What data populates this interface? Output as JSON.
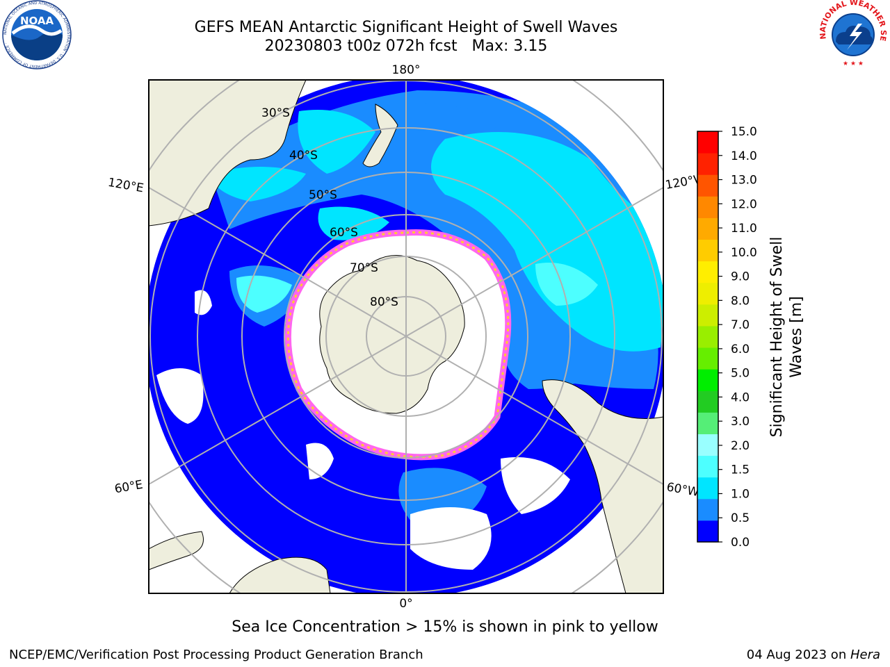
{
  "title": {
    "line1": "GEFS MEAN Antarctic Significant Height of Swell Waves",
    "line2": "20230803 t00z 072h fcst   Max: 3.15"
  },
  "map": {
    "projection": "south-polar-stereographic",
    "longitude_labels": [
      "180°",
      "120°E",
      "120°W",
      "60°E",
      "60°W",
      "0°"
    ],
    "latitude_labels": [
      "30°S",
      "40°S",
      "50°S",
      "60°S",
      "70°S",
      "80°S"
    ],
    "colors": {
      "land": "#eeeedd",
      "ice_free_ocean_dark": "#0000ff",
      "ocean_mid": "#1a8cff",
      "ocean_light": "#00e5ff",
      "sea_ice_open": "#ffffff",
      "ice_edge_pink": "#ff66ee",
      "ice_edge_yellow": "#ffcc33",
      "grid": "#b0b0b0"
    }
  },
  "colorbar": {
    "label": "Significant Height of Swell Waves [m]",
    "label_line1": "Significant Height of Swell",
    "label_line2": "Waves [m]",
    "ticks": [
      "15.0",
      "14.0",
      "13.0",
      "12.0",
      "11.0",
      "10.0",
      "9.0",
      "8.0",
      "7.0",
      "6.0",
      "5.0",
      "4.0",
      "3.0",
      "2.0",
      "1.5",
      "1.0",
      "0.5",
      "0.0"
    ],
    "colors": [
      "#0000ff",
      "#1a8cff",
      "#00e5ff",
      "#4dffff",
      "#99ffff",
      "#55ee77",
      "#22cc22",
      "#00ee00",
      "#66ee00",
      "#99ee00",
      "#ccee00",
      "#eeee00",
      "#ffee00",
      "#ffcc00",
      "#ffaa00",
      "#ff8800",
      "#ff5500",
      "#ff2200",
      "#ff0000"
    ]
  },
  "note": "Sea Ice Concentration > 15% is shown in pink to yellow",
  "footer": {
    "credit": "NCEP/EMC/Verification Post Processing Product Generation Branch",
    "date_prefix": "04 Aug 2023 on ",
    "machine": "Hera"
  },
  "logos": {
    "noaa_text": "NOAA",
    "noaa_ring": "NATIONAL OCEANIC AND ATMOSPHERIC ADMINISTRATION · U.S. DEPARTMENT OF COMMERCE ·",
    "nws_ring": "NATIONAL WEATHER SERVICE"
  }
}
